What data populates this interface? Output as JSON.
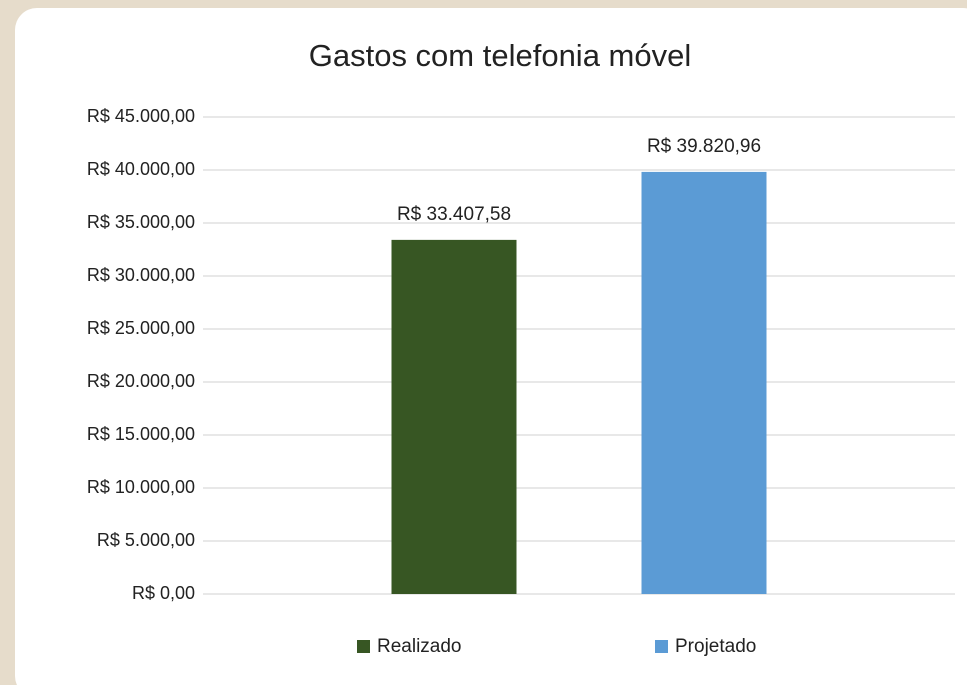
{
  "chart_data": {
    "type": "bar",
    "title": "Gastos com telefonia móvel",
    "categories": [
      null
    ],
    "series": [
      {
        "name": "Realizado",
        "color": "#375623",
        "values": [
          33407.58
        ],
        "value_labels": [
          "R$ 33.407,58"
        ]
      },
      {
        "name": "Projetado",
        "color": "#5b9bd5",
        "values": [
          39820.96
        ],
        "value_labels": [
          "R$ 39.820,96"
        ]
      }
    ],
    "ylim": [
      0,
      45000
    ],
    "yticks": [
      {
        "value": 0,
        "label": "R$ 0,00"
      },
      {
        "value": 5000,
        "label": "R$ 5.000,00"
      },
      {
        "value": 10000,
        "label": "R$ 10.000,00"
      },
      {
        "value": 15000,
        "label": "R$ 15.000,00"
      },
      {
        "value": 20000,
        "label": "R$ 20.000,00"
      },
      {
        "value": 25000,
        "label": "R$ 25.000,00"
      },
      {
        "value": 30000,
        "label": "R$ 30.000,00"
      },
      {
        "value": 35000,
        "label": "R$ 35.000,00"
      },
      {
        "value": 40000,
        "label": "R$ 40.000,00"
      },
      {
        "value": 45000,
        "label": "R$ 45.000,00"
      }
    ],
    "grid": true,
    "legend": "bottom"
  }
}
